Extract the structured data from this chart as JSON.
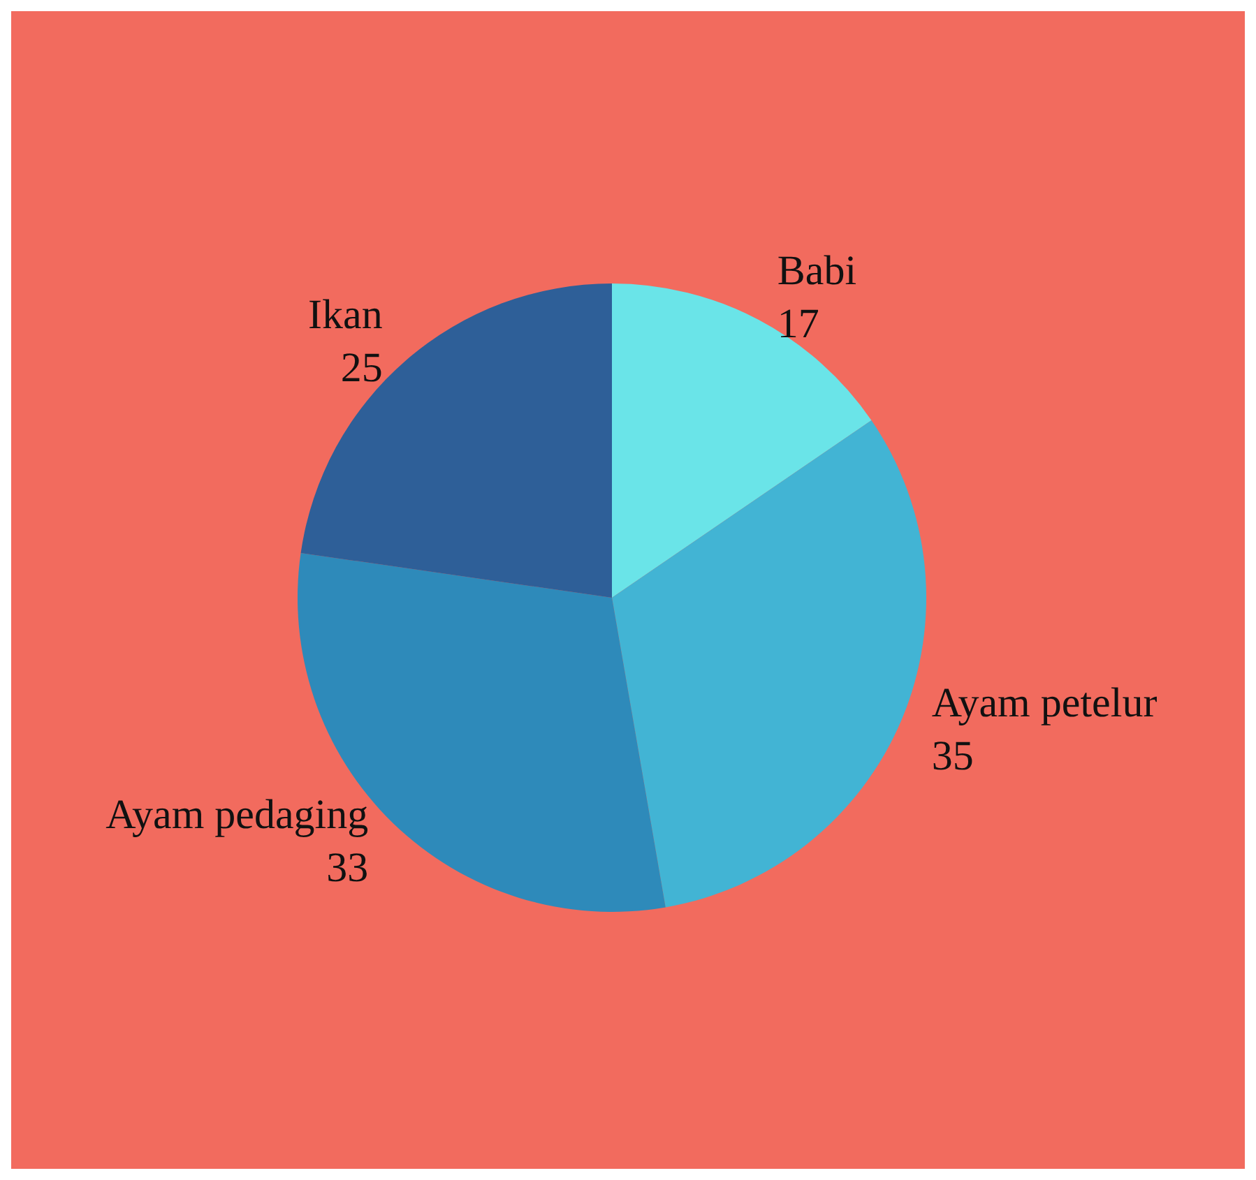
{
  "chart_data": {
    "type": "pie",
    "categories": [
      "Babi",
      "Ayam petelur",
      "Ayam pedaging",
      "Ikan"
    ],
    "values": [
      17,
      35,
      33,
      25
    ],
    "colors": [
      "#6ae4e8",
      "#42b4d4",
      "#2e8aba",
      "#2e5f98"
    ],
    "data_labels": true
  }
}
